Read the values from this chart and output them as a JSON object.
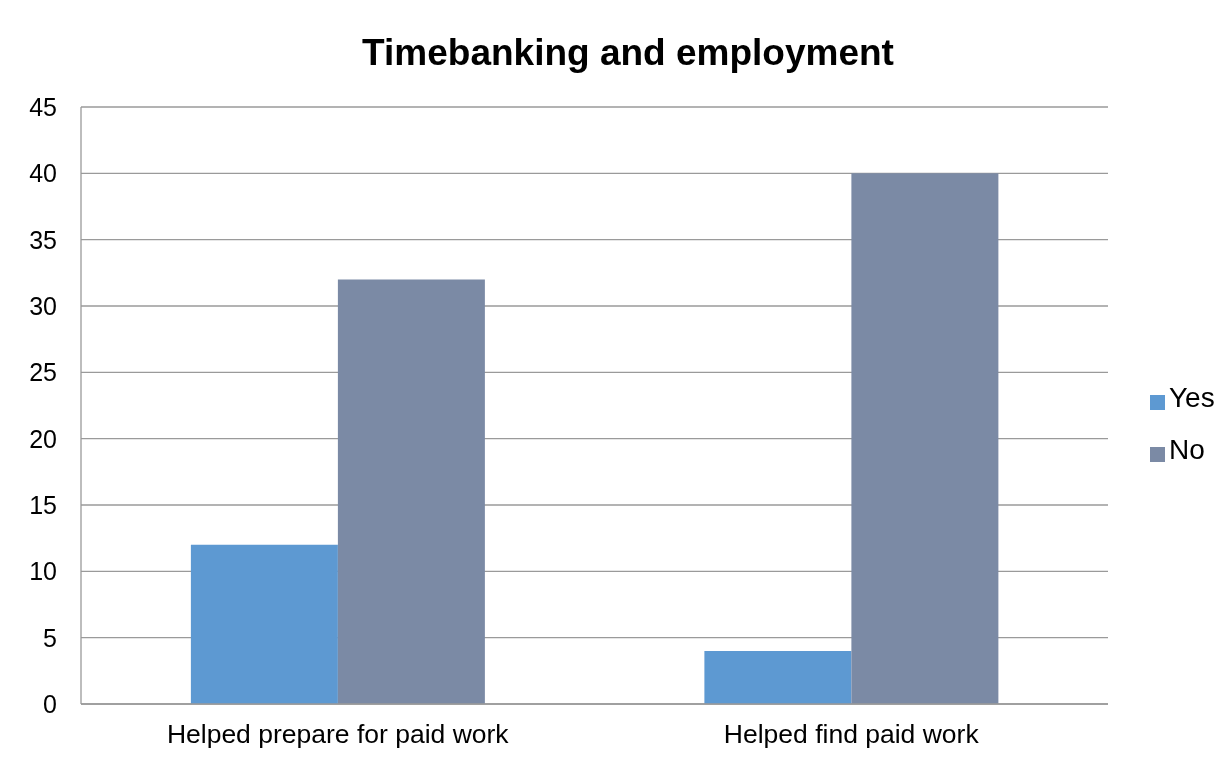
{
  "chart_data": {
    "type": "bar",
    "title": "Timebanking and employment",
    "categories": [
      "Helped prepare for paid work",
      "Helped find paid work"
    ],
    "series": [
      {
        "name": "Yes",
        "color": "#5d99d2",
        "values": [
          12,
          4
        ]
      },
      {
        "name": "No",
        "color": "#7b8aa5",
        "values": [
          32,
          40
        ]
      }
    ],
    "ylim": [
      0,
      45
    ],
    "yticks": [
      0,
      5,
      10,
      15,
      20,
      25,
      30,
      35,
      40,
      45
    ],
    "grid": "y",
    "legend": "right"
  }
}
